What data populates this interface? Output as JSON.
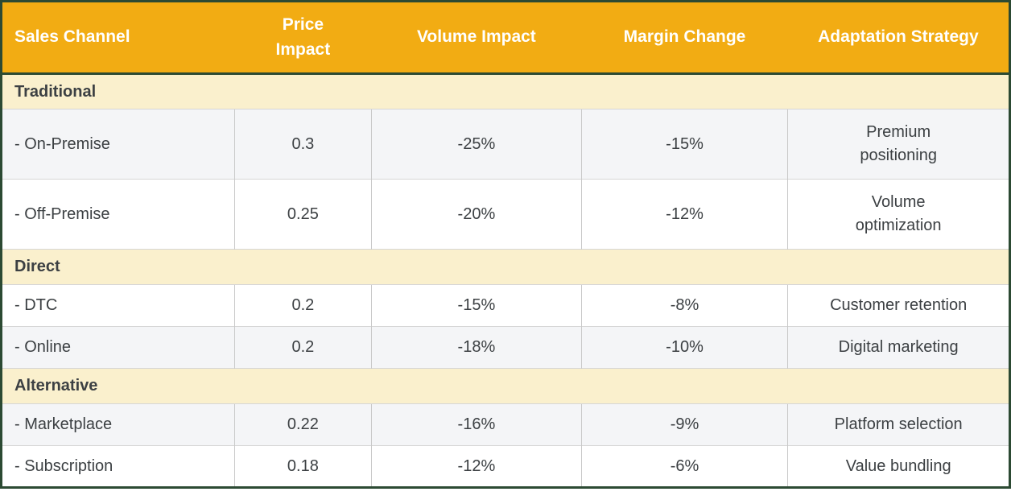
{
  "colors": {
    "header_bg": "#F2AC13",
    "header_text": "#FFFFFF",
    "section_row_bg": "#FAF0CD",
    "row_alt_bg": "#F4F5F7",
    "row_bg": "#FFFFFF",
    "outer_border": "#2C4A33",
    "grid_line": "#D6D6D6",
    "body_text": "#3C4043"
  },
  "table": {
    "header": {
      "sales_channel": "Sales Channel",
      "price_impact": "Price\nImpact",
      "volume_impact": "Volume Impact",
      "margin_change": "Margin Change",
      "adaptation_strategy": "Adaptation Strategy"
    },
    "rows": [
      {
        "type": "section",
        "label": "Traditional"
      },
      {
        "type": "data",
        "channel": "- On-Premise",
        "price_impact": "0.3",
        "volume_impact": "-25%",
        "margin_change": "-15%",
        "strategy": "Premium\npositioning"
      },
      {
        "type": "data",
        "channel": "- Off-Premise",
        "price_impact": "0.25",
        "volume_impact": "-20%",
        "margin_change": "-12%",
        "strategy": "Volume\noptimization"
      },
      {
        "type": "section",
        "label": "Direct"
      },
      {
        "type": "data",
        "channel": "- DTC",
        "price_impact": "0.2",
        "volume_impact": "-15%",
        "margin_change": "-8%",
        "strategy": "Customer retention"
      },
      {
        "type": "data",
        "channel": "- Online",
        "price_impact": "0.2",
        "volume_impact": "-18%",
        "margin_change": "-10%",
        "strategy": "Digital marketing"
      },
      {
        "type": "section",
        "label": "Alternative"
      },
      {
        "type": "data",
        "channel": "- Marketplace",
        "price_impact": "0.22",
        "volume_impact": "-16%",
        "margin_change": "-9%",
        "strategy": "Platform selection"
      },
      {
        "type": "data",
        "channel": "- Subscription",
        "price_impact": "0.18",
        "volume_impact": "-12%",
        "margin_change": "-6%",
        "strategy": "Value bundling"
      }
    ]
  },
  "chart_data": {
    "type": "table",
    "title": "",
    "columns": [
      "Sales Channel",
      "Price Impact",
      "Volume Impact",
      "Margin Change",
      "Adaptation Strategy"
    ],
    "sections": [
      {
        "name": "Traditional",
        "rows": [
          [
            "On-Premise",
            0.3,
            "-25%",
            "-15%",
            "Premium positioning"
          ],
          [
            "Off-Premise",
            0.25,
            "-20%",
            "-12%",
            "Volume optimization"
          ]
        ]
      },
      {
        "name": "Direct",
        "rows": [
          [
            "DTC",
            0.2,
            "-15%",
            "-8%",
            "Customer retention"
          ],
          [
            "Online",
            0.2,
            "-18%",
            "-10%",
            "Digital marketing"
          ]
        ]
      },
      {
        "name": "Alternative",
        "rows": [
          [
            "Marketplace",
            0.22,
            "-16%",
            "-9%",
            "Platform selection"
          ],
          [
            "Subscription",
            0.18,
            "-12%",
            "-6%",
            "Value bundling"
          ]
        ]
      }
    ]
  }
}
